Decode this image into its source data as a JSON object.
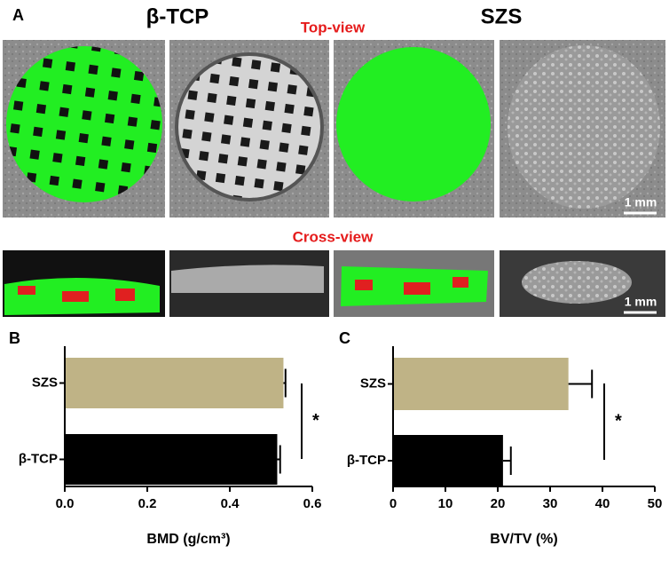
{
  "panel_a": {
    "label": "A",
    "groups": [
      "β-TCP",
      "SZS"
    ],
    "top_view": "Top-view",
    "cross_view": "Cross-view",
    "scale_bars": [
      "1 mm",
      "1 mm"
    ]
  },
  "chart_data": [
    {
      "type": "hbar",
      "label": "B",
      "categories": [
        "SZS",
        "β-TCP"
      ],
      "values": [
        0.53,
        0.515
      ],
      "errors": [
        0.005,
        0.007
      ],
      "colors": [
        "#bfb386",
        "#000000"
      ],
      "xlabel": "BMD (g/cm³)",
      "xlim": [
        0,
        0.6
      ],
      "xticks": [
        {
          "value": 0,
          "label": "0.0"
        },
        0.2,
        0.4,
        0.6
      ],
      "annotation": "*"
    },
    {
      "type": "hbar",
      "label": "C",
      "categories": [
        "SZS",
        "β-TCP"
      ],
      "values": [
        33.5,
        21
      ],
      "errors": [
        4.5,
        1.5
      ],
      "colors": [
        "#bfb386",
        "#000000"
      ],
      "xlabel": "BV/TV (%)",
      "xlim": [
        0,
        50
      ],
      "xticks": [
        0,
        10,
        20,
        30,
        40,
        50
      ],
      "annotation": "*"
    }
  ]
}
